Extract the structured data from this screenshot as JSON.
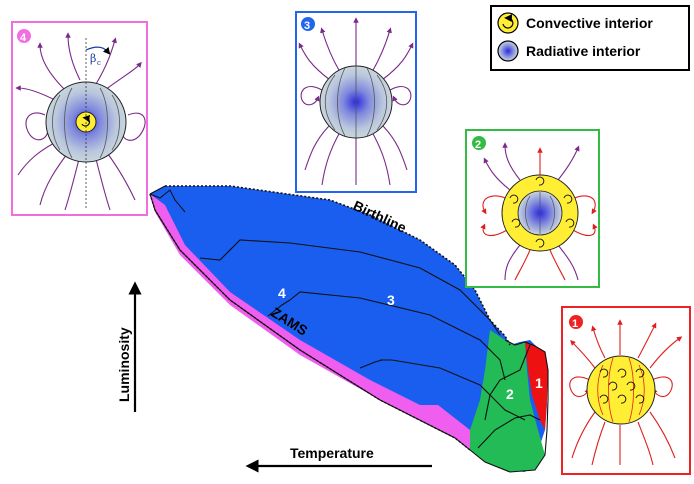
{
  "legend": {
    "convective": "Convective interior",
    "radiative": "Radiative interior"
  },
  "axes": {
    "luminosity": "Luminosity",
    "temperature": "Temperature"
  },
  "curves": {
    "birthline": "Birthline",
    "zams": "ZAMS"
  },
  "regions": {
    "r1": "1",
    "r2": "2",
    "r3": "3",
    "r4": "4"
  },
  "panels": {
    "p1": "1",
    "p2": "2",
    "p3": "3",
    "p4": "4",
    "beta_label": "β",
    "beta_sub": "c"
  },
  "colors": {
    "region1": "#ee1111",
    "region2": "#22bb55",
    "region3": "#1a5ef0",
    "region4": "#f05ef0",
    "panel1": "#ee2222",
    "panel2": "#33bb44",
    "panel3": "#2266ee",
    "panel4": "#f06ee0",
    "field": "#7a2a8a",
    "convective": "#ffee33"
  }
}
